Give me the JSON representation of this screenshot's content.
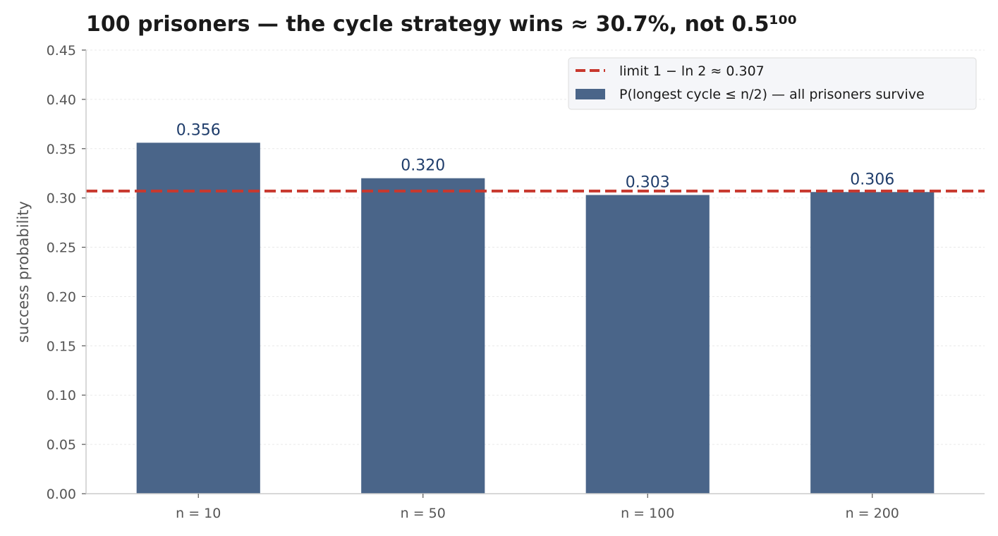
{
  "chart_data": {
    "type": "bar",
    "title": "100 prisoners — the cycle strategy wins ≈ 30.7%, not 0.5¹⁰⁰",
    "xlabel": "",
    "ylabel": "success probability",
    "categories": [
      "n = 10",
      "n = 50",
      "n = 100",
      "n = 200"
    ],
    "series": [
      {
        "name": "P(longest cycle ≤ n/2) — all prisoners survive",
        "values": [
          0.356,
          0.32,
          0.303,
          0.306
        ],
        "labels": [
          "0.356",
          "0.320",
          "0.303",
          "0.306"
        ],
        "color": "#4a6589"
      }
    ],
    "reference_line": {
      "name": "limit 1 − ln 2 ≈ 0.307",
      "value": 0.307,
      "color": "#c8382e",
      "style": "dashed"
    },
    "ylim": [
      0,
      0.45
    ],
    "yticks": [
      "0.00",
      "0.05",
      "0.10",
      "0.15",
      "0.20",
      "0.25",
      "0.30",
      "0.35",
      "0.40",
      "0.45"
    ],
    "grid": true,
    "legend_position": "top-right",
    "label_color": "#1f3d6b"
  }
}
